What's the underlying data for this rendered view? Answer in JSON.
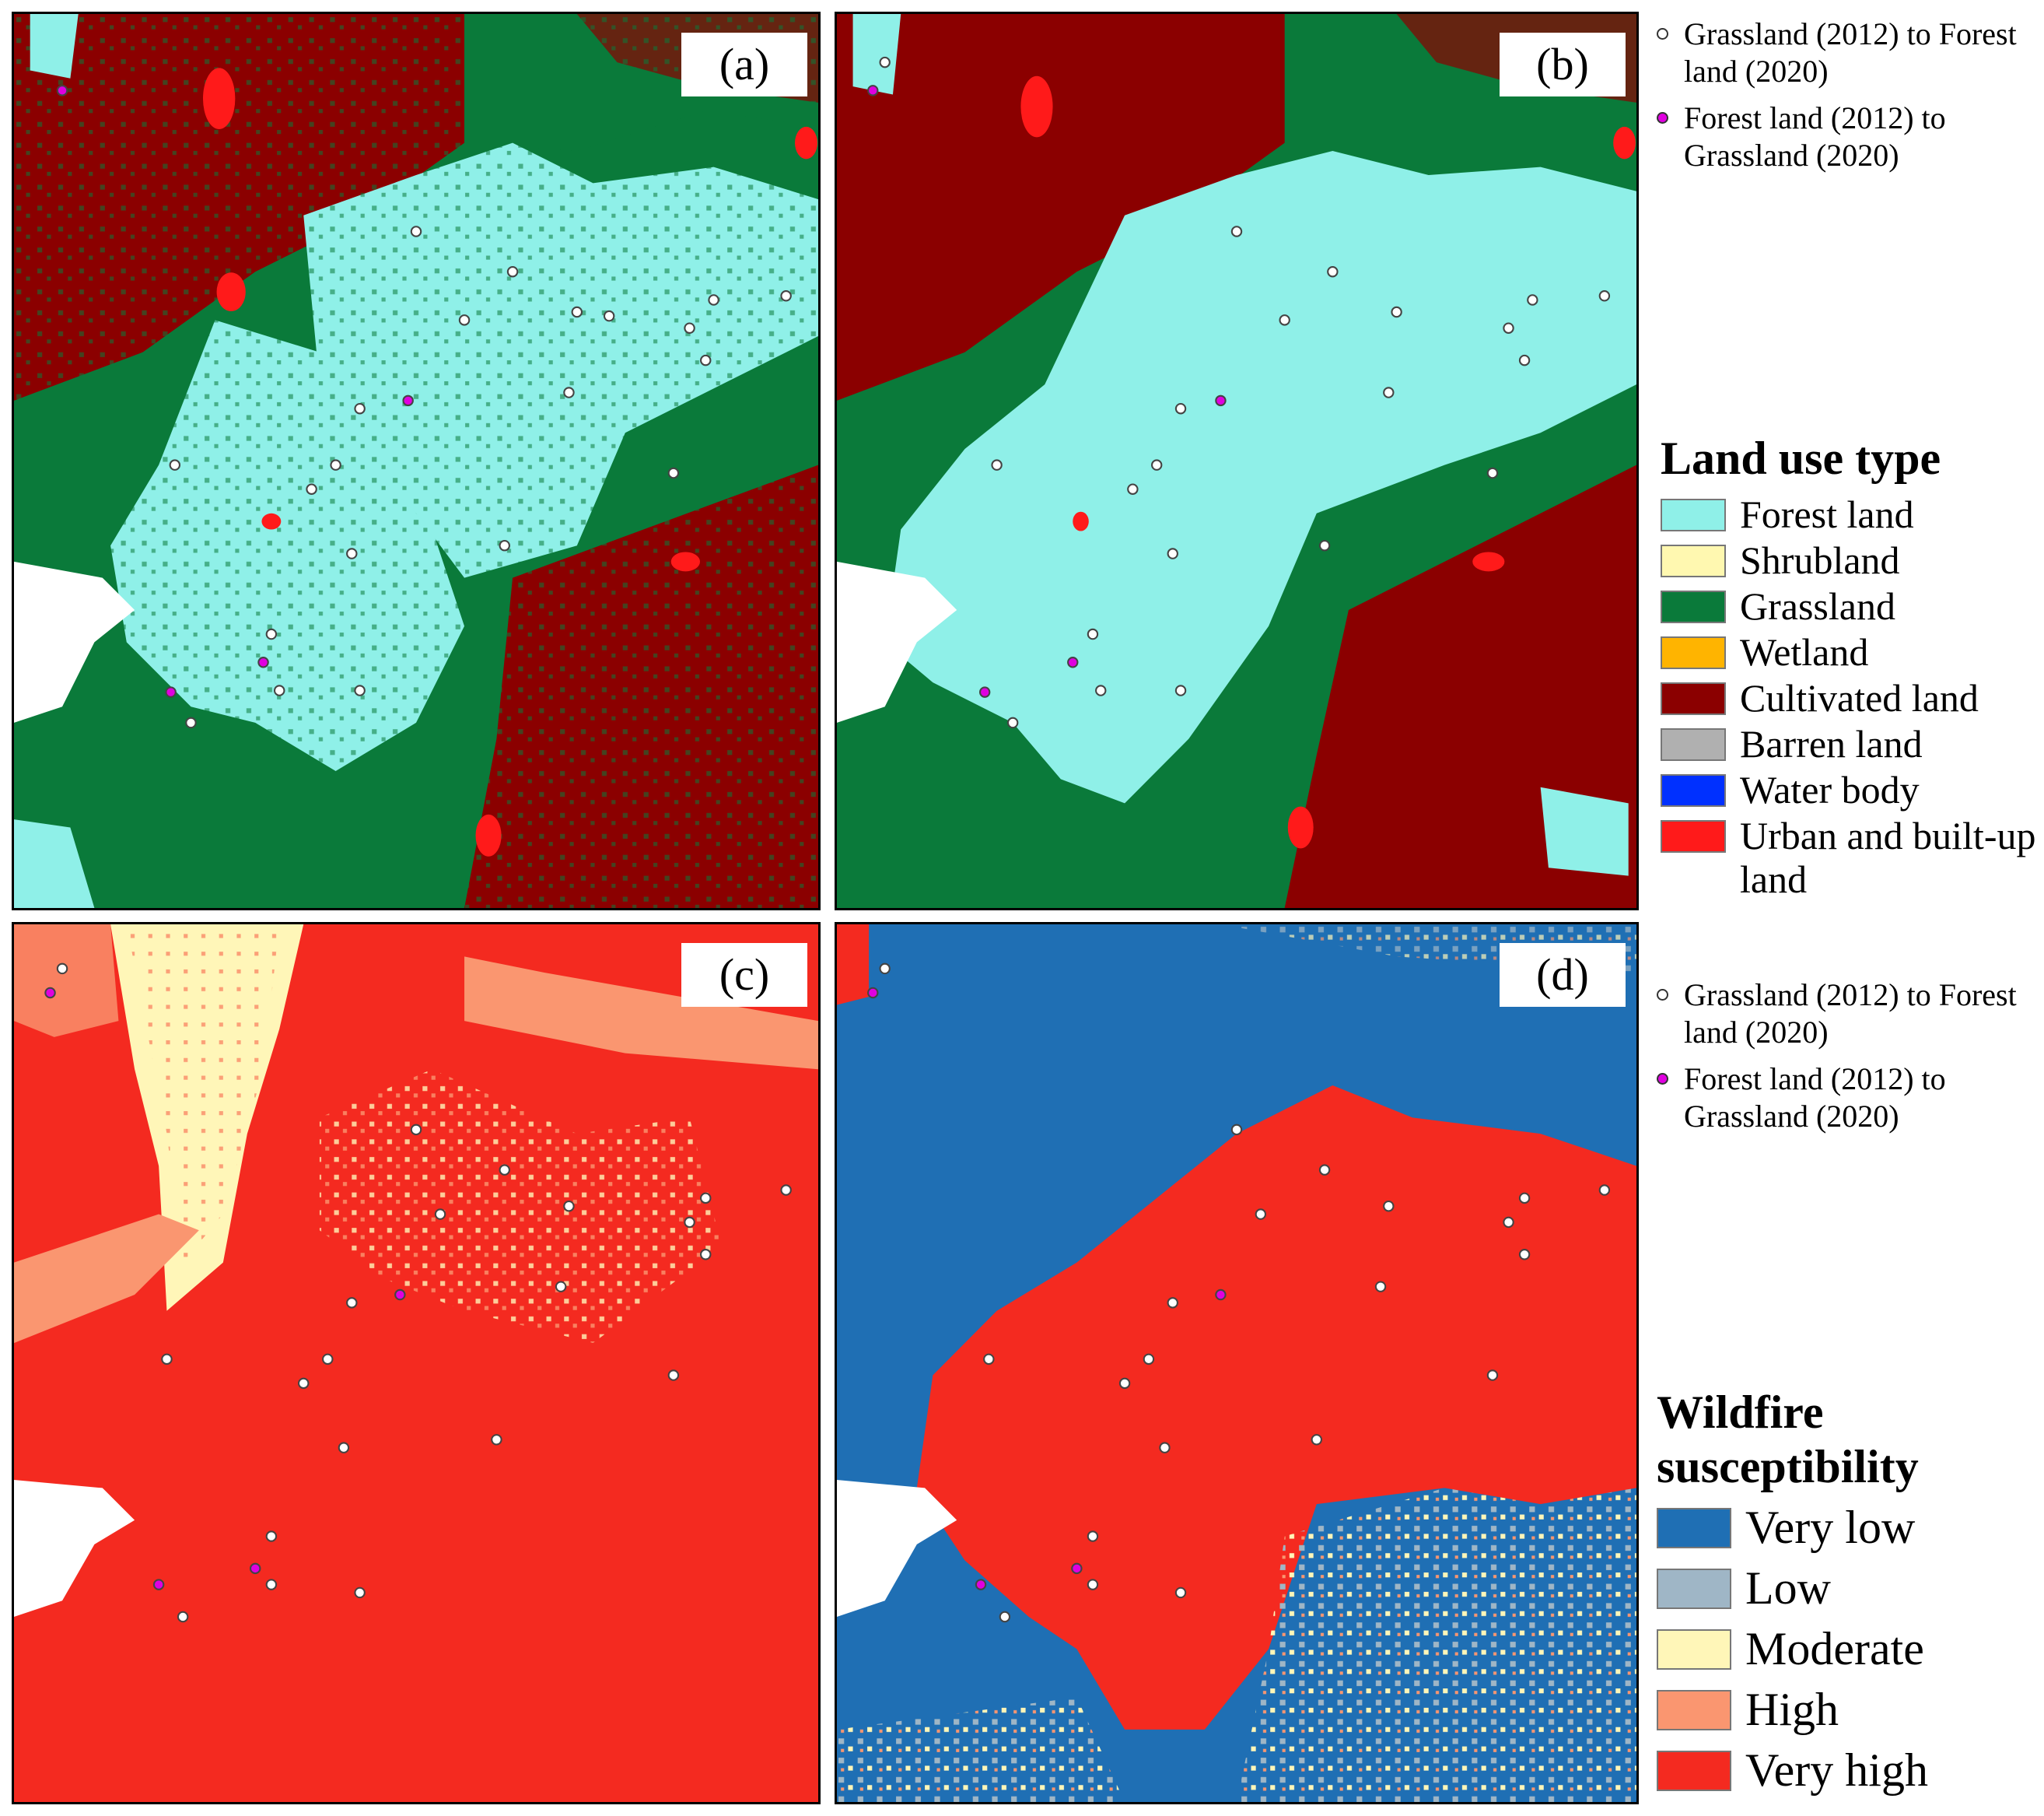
{
  "panels": {
    "a": {
      "label": "(a)"
    },
    "b": {
      "label": "(b)"
    },
    "c": {
      "label": "(c)"
    },
    "d": {
      "label": "(d)"
    }
  },
  "point_legend": {
    "white_label": "Grassland (2012) to Forest land (2020)",
    "magenta_label": "Forest land (2012) to Grassland (2020)"
  },
  "land_use_legend": {
    "title": "Land use type",
    "items": [
      {
        "label": "Forest land",
        "color": "#8ff0e8"
      },
      {
        "label": "Shrubland",
        "color": "#fff8b0"
      },
      {
        "label": "Grassland",
        "color": "#0a7a3a"
      },
      {
        "label": "Wetland",
        "color": "#ffb400"
      },
      {
        "label": "Cultivated land",
        "color": "#8b0000"
      },
      {
        "label": "Barren land",
        "color": "#b0b0b0"
      },
      {
        "label": "Water body",
        "color": "#0030ff"
      },
      {
        "label": "Urban and built-up land",
        "color": "#ff1a1a"
      }
    ]
  },
  "wildfire_legend": {
    "title": "Wildfire susceptibility",
    "items": [
      {
        "label": "Very low",
        "color": "#1f6fb4"
      },
      {
        "label": "Low",
        "color": "#9fb6c6"
      },
      {
        "label": "Moderate",
        "color": "#fff6b8"
      },
      {
        "label": "High",
        "color": "#fa9670"
      },
      {
        "label": "Very high",
        "color": "#f42a20"
      }
    ]
  },
  "colors": {
    "white_point": "#ffffff",
    "magenta_point": "#e000e0"
  }
}
